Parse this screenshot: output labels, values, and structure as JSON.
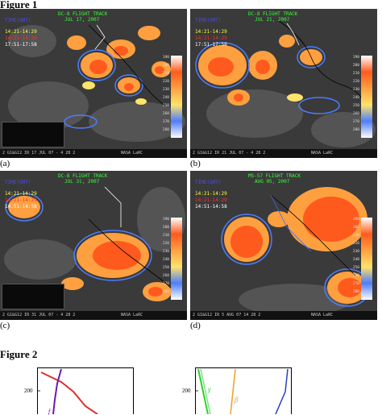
{
  "figure1": {
    "label": "Figure 1",
    "panels": [
      {
        "letter": "(a)",
        "track_title": "DC-8 FLIGHT TRACK",
        "track_date": "JUL 17, 2007",
        "time_header": "TIME(GMT)",
        "time_rows": [
          "14:21-14:29",
          "14:21-14:29",
          "17:51-17:58"
        ],
        "footer_left": "2  G1&G12 IR  17 JUL 07 - 4 28 2",
        "footer_right": "NASA LaRC"
      },
      {
        "letter": "(b)",
        "track_title": "DC-8 FLIGHT TRACK",
        "track_date": "JUL 21, 2007",
        "time_header": "TIME(GMT)",
        "time_rows": [
          "14:21-14:29",
          "14:21-14:29",
          "17:51-17:58"
        ],
        "footer_left": "2  G1&G12 IR  21 JUL 07 - 4 28 2",
        "footer_right": "NASA LaRC"
      },
      {
        "letter": "(c)",
        "track_title": "DC-8 FLIGHT TRACK",
        "track_date": "JUL 31, 2007",
        "time_header": "TIME(GMT)",
        "time_rows": [
          "14:21-14:29",
          "14:21-14:29",
          "14:51-14:58"
        ],
        "footer_left": "2  G1&G12 IR  31 JUL 07 - 4 28 2",
        "footer_right": "NASA LaRC"
      },
      {
        "letter": "(d)",
        "track_title": "MS-57 FLIGHT TRACK",
        "track_date": "AUG 05, 2007",
        "time_header": "TIME(GMT)",
        "time_rows": [
          "14:21-14:29",
          "14:21-14:29",
          "14:51-14:58"
        ],
        "footer_left": "2  G1&G12 IR  5 AUG 07 14 28 2",
        "footer_right": "NASA LaRC"
      }
    ],
    "scale_ticks": [
      "190",
      "200",
      "210",
      "220",
      "230",
      "240",
      "250",
      "260",
      "270",
      "280"
    ],
    "colors": {
      "cloud_hot": "#ff5a1e",
      "cloud_warm": "#ffa040",
      "cloud_yellow": "#ffe36a",
      "cloud_cold": "#4d7dff",
      "background": "#333333",
      "track": "#ffffff",
      "coast": "#000000",
      "title_green": "#37ff37",
      "time_blue": "#4a4aff",
      "time_yellow": "#ffff3a",
      "time_red": "#ff3030",
      "time_white": "#ffffff"
    }
  },
  "figure2": {
    "label": "Figure 2",
    "tick": "200",
    "greek_gamma": "γ",
    "greek_beta": "β",
    "greek_italic_f": "f"
  }
}
